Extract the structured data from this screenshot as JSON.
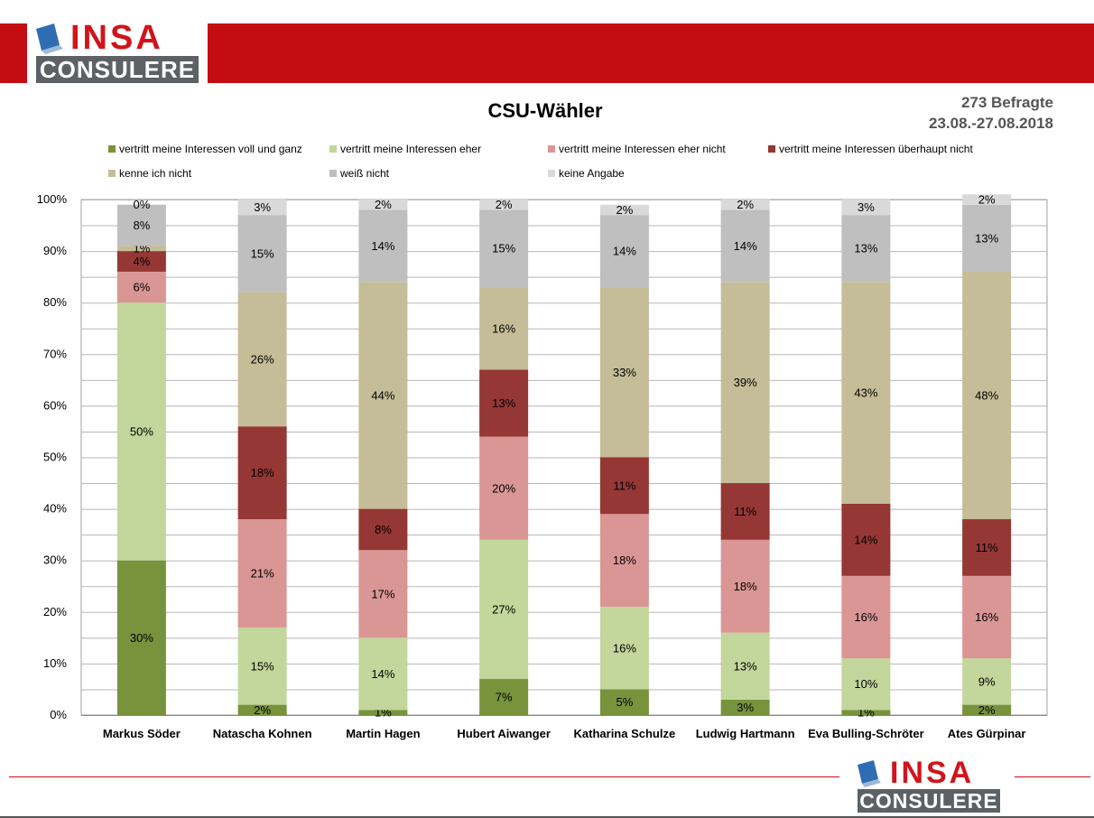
{
  "header": {
    "logo_word": "INSA",
    "logo_sub": "CONSULERE"
  },
  "meta": {
    "respondents": "273 Befragte",
    "date_range": "23.08.-27.08.2018"
  },
  "colors": {
    "brand_red": "#c40d12",
    "logo_gray": "#5d6166"
  },
  "chart_data": {
    "type": "bar",
    "stacked": true,
    "title": "CSU-Wähler",
    "xlabel": "",
    "ylabel": "",
    "ylim": [
      0,
      100
    ],
    "y_ticks": [
      "0%",
      "10%",
      "20%",
      "30%",
      "40%",
      "50%",
      "60%",
      "70%",
      "80%",
      "90%",
      "100%"
    ],
    "grid": true,
    "legend_position": "top",
    "categories": [
      "Markus Söder",
      "Natascha Kohnen",
      "Martin Hagen",
      "Hubert Aiwanger",
      "Katharina Schulze",
      "Ludwig Hartmann",
      "Eva Bulling-Schröter",
      "Ates Gürpinar"
    ],
    "series": [
      {
        "name": "vertritt meine Interessen voll und ganz",
        "color": "#77933c",
        "values": [
          30,
          2,
          1,
          7,
          5,
          3,
          1,
          2
        ]
      },
      {
        "name": "vertritt meine Interessen eher",
        "color": "#c3d69b",
        "values": [
          50,
          15,
          14,
          27,
          16,
          13,
          10,
          9
        ]
      },
      {
        "name": "vertritt meine Interessen eher nicht",
        "color": "#d99694",
        "values": [
          6,
          21,
          17,
          20,
          18,
          18,
          16,
          16
        ]
      },
      {
        "name": "vertritt meine Interessen überhaupt nicht",
        "color": "#953735",
        "values": [
          4,
          18,
          8,
          13,
          11,
          11,
          14,
          11
        ]
      },
      {
        "name": "kenne ich nicht",
        "color": "#c4bd97",
        "values": [
          1,
          26,
          44,
          16,
          33,
          39,
          43,
          48
        ]
      },
      {
        "name": "weiß nicht",
        "color": "#bfbfbf",
        "values": [
          8,
          15,
          14,
          15,
          14,
          14,
          13,
          13
        ]
      },
      {
        "name": "keine Angabe",
        "color": "#d9d9d9",
        "values": [
          0,
          3,
          2,
          2,
          2,
          2,
          3,
          2
        ]
      }
    ]
  }
}
